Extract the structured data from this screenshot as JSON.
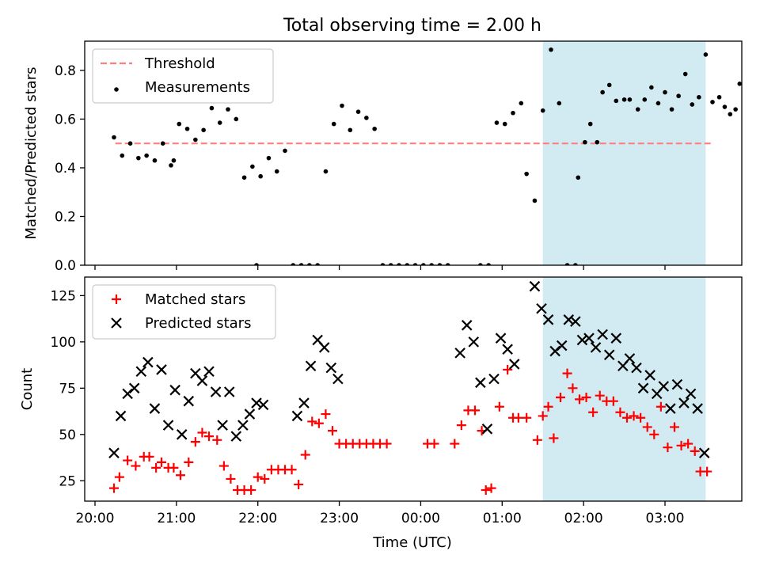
{
  "chart_data": [
    {
      "type": "scatter",
      "title": "Total observing time = 2.00 h",
      "xlabel": "",
      "ylabel": "Matched/Predicted stars",
      "xlim": [
        "20:00",
        "04:00"
      ],
      "ylim": [
        0,
        0.92
      ],
      "yticks": [
        "0.0",
        "0.2",
        "0.4",
        "0.6",
        "0.8"
      ],
      "ytick_values": [
        0,
        0.2,
        0.4,
        0.6,
        0.8
      ],
      "legend_position": "top-left",
      "grid": false,
      "highlight_span": {
        "x": [
          "01:30",
          "03:30"
        ],
        "color": "#add8e6"
      },
      "threshold": {
        "name": "Threshold",
        "value": 0.5,
        "x": [
          "20:15",
          "03:35"
        ],
        "style": "dashed",
        "color": "#ff7f7f"
      },
      "series": [
        {
          "name": "Measurements",
          "color": "#000000",
          "marker": "dot",
          "points": [
            [
              "20:14",
              0.525
            ],
            [
              "20:20",
              0.45
            ],
            [
              "20:26",
              0.5
            ],
            [
              "20:32",
              0.44
            ],
            [
              "20:38",
              0.45
            ],
            [
              "20:44",
              0.43
            ],
            [
              "20:50",
              0.5
            ],
            [
              "20:56",
              0.41
            ],
            [
              "21:02",
              0.58
            ],
            [
              "20:58",
              0.43
            ],
            [
              "21:08",
              0.56
            ],
            [
              "21:14",
              0.515
            ],
            [
              "21:20",
              0.555
            ],
            [
              "21:26",
              0.645
            ],
            [
              "21:32",
              0.585
            ],
            [
              "21:38",
              0.64
            ],
            [
              "21:44",
              0.6
            ],
            [
              "21:50",
              0.36
            ],
            [
              "21:56",
              0.405
            ],
            [
              "22:02",
              0.365
            ],
            [
              "22:08",
              0.44
            ],
            [
              "22:14",
              0.385
            ],
            [
              "22:20",
              0.47
            ],
            [
              "22:26",
              0.0
            ],
            [
              "22:32",
              0.0
            ],
            [
              "22:38",
              0.0
            ],
            [
              "22:44",
              0.0
            ],
            [
              "22:50",
              0.385
            ],
            [
              "22:56",
              0.58
            ],
            [
              "23:02",
              0.655
            ],
            [
              "23:08",
              0.555
            ],
            [
              "23:14",
              0.63
            ],
            [
              "23:20",
              0.605
            ],
            [
              "23:26",
              0.56
            ],
            [
              "21:59",
              0.0
            ],
            [
              "23:32",
              0.0
            ],
            [
              "23:38",
              0.0
            ],
            [
              "23:44",
              0.0
            ],
            [
              "23:50",
              0.0
            ],
            [
              "23:56",
              0.0
            ],
            [
              "00:02",
              0.0
            ],
            [
              "00:08",
              0.0
            ],
            [
              "00:14",
              0.0
            ],
            [
              "00:44",
              0.0
            ],
            [
              "00:20",
              0.0
            ],
            [
              "00:50",
              0.0
            ],
            [
              "00:56",
              0.585
            ],
            [
              "01:02",
              0.58
            ],
            [
              "01:08",
              0.625
            ],
            [
              "01:14",
              0.665
            ],
            [
              "01:18",
              0.375
            ],
            [
              "01:24",
              0.265
            ],
            [
              "01:30",
              0.635
            ],
            [
              "01:36",
              0.885
            ],
            [
              "01:42",
              0.665
            ],
            [
              "01:48",
              0.0
            ],
            [
              "01:54",
              0.0
            ],
            [
              "01:56",
              0.36
            ],
            [
              "02:01",
              0.505
            ],
            [
              "02:05",
              0.58
            ],
            [
              "02:10",
              0.505
            ],
            [
              "02:14",
              0.71
            ],
            [
              "02:19",
              0.74
            ],
            [
              "02:24",
              0.675
            ],
            [
              "02:30",
              0.68
            ],
            [
              "02:34",
              0.68
            ],
            [
              "02:40",
              0.64
            ],
            [
              "02:45",
              0.68
            ],
            [
              "02:50",
              0.73
            ],
            [
              "02:55",
              0.665
            ],
            [
              "03:00",
              0.71
            ],
            [
              "03:05",
              0.64
            ],
            [
              "03:10",
              0.695
            ],
            [
              "03:15",
              0.785
            ],
            [
              "03:20",
              0.66
            ],
            [
              "03:25",
              0.69
            ],
            [
              "03:30",
              0.865
            ],
            [
              "03:35",
              0.67
            ],
            [
              "03:40",
              0.69
            ],
            [
              "03:44",
              0.65
            ],
            [
              "03:48",
              0.62
            ],
            [
              "03:52",
              0.64
            ],
            [
              "03:55",
              0.745
            ],
            [
              "03:59",
              0.0
            ]
          ]
        }
      ]
    },
    {
      "type": "scatter",
      "title": "",
      "xlabel": "Time (UTC)",
      "ylabel": "Count",
      "xlim": [
        "20:00",
        "04:00"
      ],
      "ylim": [
        14,
        135
      ],
      "yticks": [
        "25",
        "50",
        "75",
        "100",
        "125"
      ],
      "ytick_values": [
        25,
        50,
        75,
        100,
        125
      ],
      "xticks": [
        "20:00",
        "21:00",
        "22:00",
        "23:00",
        "00:00",
        "01:00",
        "02:00",
        "03:00"
      ],
      "legend_position": "top-left",
      "grid": false,
      "highlight_span": {
        "x": [
          "01:30",
          "03:30"
        ],
        "color": "#add8e6"
      },
      "series": [
        {
          "name": "Matched stars",
          "color": "#ff0000",
          "marker": "plus",
          "points": [
            [
              "20:14",
              21
            ],
            [
              "20:18",
              27
            ],
            [
              "20:24",
              36
            ],
            [
              "20:30",
              33
            ],
            [
              "20:36",
              38
            ],
            [
              "20:40",
              38
            ],
            [
              "20:45",
              32
            ],
            [
              "20:49",
              35
            ],
            [
              "20:54",
              32
            ],
            [
              "20:58",
              32
            ],
            [
              "21:03",
              28
            ],
            [
              "21:09",
              35
            ],
            [
              "21:14",
              46
            ],
            [
              "21:19",
              51
            ],
            [
              "21:24",
              49
            ],
            [
              "21:30",
              47
            ],
            [
              "21:35",
              33
            ],
            [
              "21:40",
              26
            ],
            [
              "21:45",
              20
            ],
            [
              "21:50",
              20
            ],
            [
              "21:55",
              20
            ],
            [
              "22:00",
              27
            ],
            [
              "22:05",
              26
            ],
            [
              "22:10",
              31
            ],
            [
              "22:15",
              31
            ],
            [
              "22:20",
              31
            ],
            [
              "22:25",
              31
            ],
            [
              "22:30",
              23
            ],
            [
              "22:35",
              39
            ],
            [
              "22:40",
              57
            ],
            [
              "22:45",
              56
            ],
            [
              "22:50",
              61
            ],
            [
              "22:55",
              52
            ],
            [
              "23:00",
              45
            ],
            [
              "23:05",
              45
            ],
            [
              "23:10",
              45
            ],
            [
              "23:15",
              45
            ],
            [
              "23:20",
              45
            ],
            [
              "23:25",
              45
            ],
            [
              "23:30",
              45
            ],
            [
              "23:35",
              45
            ],
            [
              "00:05",
              45
            ],
            [
              "00:10",
              45
            ],
            [
              "00:25",
              45
            ],
            [
              "00:30",
              55
            ],
            [
              "00:35",
              63
            ],
            [
              "00:40",
              63
            ],
            [
              "00:45",
              52
            ],
            [
              "00:48",
              20
            ],
            [
              "00:52",
              21
            ],
            [
              "00:58",
              65
            ],
            [
              "01:04",
              85
            ],
            [
              "01:08",
              59
            ],
            [
              "01:12",
              59
            ],
            [
              "01:18",
              59
            ],
            [
              "01:26",
              47
            ],
            [
              "01:30",
              60
            ],
            [
              "01:34",
              65
            ],
            [
              "01:38",
              48
            ],
            [
              "01:43",
              70
            ],
            [
              "01:48",
              83
            ],
            [
              "01:52",
              75
            ],
            [
              "01:57",
              69
            ],
            [
              "02:02",
              70
            ],
            [
              "02:07",
              62
            ],
            [
              "02:12",
              71
            ],
            [
              "02:17",
              68
            ],
            [
              "02:22",
              68
            ],
            [
              "02:27",
              62
            ],
            [
              "02:32",
              59
            ],
            [
              "02:37",
              60
            ],
            [
              "02:42",
              59
            ],
            [
              "02:47",
              54
            ],
            [
              "02:52",
              50
            ],
            [
              "02:57",
              65
            ],
            [
              "03:02",
              43
            ],
            [
              "03:07",
              54
            ],
            [
              "03:12",
              44
            ],
            [
              "03:17",
              45
            ],
            [
              "03:22",
              41
            ],
            [
              "03:26",
              30
            ],
            [
              "03:31",
              30
            ]
          ]
        },
        {
          "name": "Predicted stars",
          "color": "#000000",
          "marker": "x",
          "points": [
            [
              "20:14",
              40
            ],
            [
              "20:19",
              60
            ],
            [
              "20:24",
              72
            ],
            [
              "20:29",
              75
            ],
            [
              "20:34",
              84
            ],
            [
              "20:39",
              89
            ],
            [
              "20:44",
              64
            ],
            [
              "20:49",
              85
            ],
            [
              "20:54",
              55
            ],
            [
              "20:59",
              74
            ],
            [
              "21:04",
              50
            ],
            [
              "21:09",
              68
            ],
            [
              "21:14",
              83
            ],
            [
              "21:19",
              79
            ],
            [
              "21:24",
              84
            ],
            [
              "21:29",
              73
            ],
            [
              "21:34",
              55
            ],
            [
              "21:39",
              73
            ],
            [
              "21:44",
              49
            ],
            [
              "21:49",
              55
            ],
            [
              "21:54",
              61
            ],
            [
              "21:59",
              67
            ],
            [
              "22:04",
              66
            ],
            [
              "22:29",
              60
            ],
            [
              "22:34",
              67
            ],
            [
              "22:39",
              87
            ],
            [
              "22:44",
              101
            ],
            [
              "22:49",
              97
            ],
            [
              "22:54",
              86
            ],
            [
              "22:59",
              80
            ],
            [
              "00:29",
              94
            ],
            [
              "00:34",
              109
            ],
            [
              "00:39",
              100
            ],
            [
              "00:44",
              78
            ],
            [
              "00:49",
              53
            ],
            [
              "00:54",
              80
            ],
            [
              "00:59",
              102
            ],
            [
              "01:04",
              96
            ],
            [
              "01:09",
              88
            ],
            [
              "01:24",
              130
            ],
            [
              "01:29",
              118
            ],
            [
              "01:34",
              112
            ],
            [
              "01:39",
              95
            ],
            [
              "01:44",
              98
            ],
            [
              "01:49",
              112
            ],
            [
              "01:54",
              111
            ],
            [
              "01:59",
              101
            ],
            [
              "02:04",
              102
            ],
            [
              "02:09",
              97
            ],
            [
              "02:14",
              104
            ],
            [
              "02:19",
              93
            ],
            [
              "02:24",
              102
            ],
            [
              "02:29",
              87
            ],
            [
              "02:34",
              91
            ],
            [
              "02:39",
              86
            ],
            [
              "02:44",
              75
            ],
            [
              "02:49",
              82
            ],
            [
              "02:54",
              72
            ],
            [
              "02:59",
              76
            ],
            [
              "03:04",
              64
            ],
            [
              "03:09",
              77
            ],
            [
              "03:14",
              67
            ],
            [
              "03:19",
              72
            ],
            [
              "03:24",
              64
            ],
            [
              "03:29",
              40
            ]
          ]
        }
      ]
    }
  ]
}
